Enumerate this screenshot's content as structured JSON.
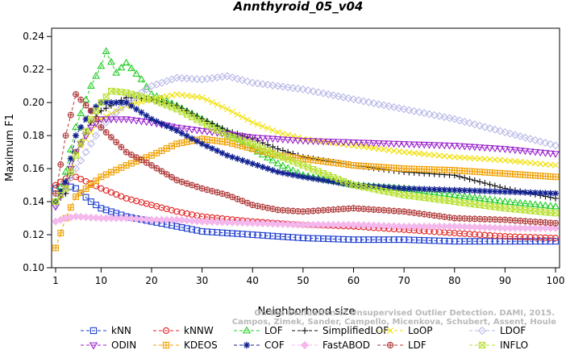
{
  "chart_data": {
    "type": "line",
    "title": "Annthyroid_05_v04",
    "xlabel": "Neighborhood size",
    "ylabel": "Maximum F1",
    "xlim": [
      1,
      100
    ],
    "ylim": [
      0.1,
      0.245
    ],
    "xticks": [
      "1",
      "10",
      "20",
      "30",
      "40",
      "50",
      "60",
      "70",
      "80",
      "90",
      "100"
    ],
    "yticks": [
      "0.10",
      "0.12",
      "0.14",
      "0.16",
      "0.18",
      "0.20",
      "0.22",
      "0.24"
    ],
    "grid": false,
    "legend_position": "bottom",
    "watermark": [
      "Campos, Zimek, Sander, Campello, Micenkova, Schubert, Assent, Houle",
      "On the Evaluation of Unsupervised Outlier Detection. DAMI, 2015."
    ],
    "series": [
      {
        "name": "kNN",
        "color": "#1f3fcf",
        "marker": "square",
        "dash": "dash",
        "points": [
          [
            1,
            0.148
          ],
          [
            3,
            0.15
          ],
          [
            5,
            0.148
          ],
          [
            8,
            0.14
          ],
          [
            10,
            0.136
          ],
          [
            15,
            0.131
          ],
          [
            20,
            0.128
          ],
          [
            25,
            0.125
          ],
          [
            30,
            0.122
          ],
          [
            40,
            0.12
          ],
          [
            50,
            0.118
          ],
          [
            60,
            0.117
          ],
          [
            70,
            0.117
          ],
          [
            80,
            0.116
          ],
          [
            90,
            0.116
          ],
          [
            100,
            0.116
          ]
        ]
      },
      {
        "name": "kNNW",
        "color": "#e02020",
        "marker": "circle",
        "dash": "dash",
        "points": [
          [
            1,
            0.15
          ],
          [
            3,
            0.154
          ],
          [
            5,
            0.155
          ],
          [
            8,
            0.151
          ],
          [
            10,
            0.148
          ],
          [
            15,
            0.142
          ],
          [
            20,
            0.138
          ],
          [
            25,
            0.134
          ],
          [
            30,
            0.131
          ],
          [
            40,
            0.128
          ],
          [
            50,
            0.126
          ],
          [
            60,
            0.125
          ],
          [
            70,
            0.123
          ],
          [
            80,
            0.121
          ],
          [
            90,
            0.119
          ],
          [
            100,
            0.118
          ]
        ]
      },
      {
        "name": "LOF",
        "color": "#22cc22",
        "marker": "triangle",
        "dash": "dash",
        "points": [
          [
            1,
            0.14
          ],
          [
            3,
            0.158
          ],
          [
            5,
            0.185
          ],
          [
            8,
            0.21
          ],
          [
            10,
            0.222
          ],
          [
            11,
            0.231
          ],
          [
            13,
            0.218
          ],
          [
            15,
            0.224
          ],
          [
            18,
            0.214
          ],
          [
            20,
            0.205
          ],
          [
            25,
            0.198
          ],
          [
            30,
            0.19
          ],
          [
            35,
            0.182
          ],
          [
            40,
            0.172
          ],
          [
            45,
            0.163
          ],
          [
            50,
            0.156
          ],
          [
            60,
            0.15
          ],
          [
            70,
            0.148
          ],
          [
            80,
            0.144
          ],
          [
            90,
            0.14
          ],
          [
            100,
            0.137
          ]
        ]
      },
      {
        "name": "SimplifiedLOF",
        "color": "#111111",
        "marker": "plus",
        "dash": "dash",
        "points": [
          [
            1,
            0.14
          ],
          [
            3,
            0.145
          ],
          [
            5,
            0.17
          ],
          [
            8,
            0.188
          ],
          [
            10,
            0.195
          ],
          [
            15,
            0.203
          ],
          [
            20,
            0.202
          ],
          [
            25,
            0.198
          ],
          [
            30,
            0.19
          ],
          [
            35,
            0.183
          ],
          [
            40,
            0.178
          ],
          [
            45,
            0.172
          ],
          [
            50,
            0.167
          ],
          [
            60,
            0.162
          ],
          [
            70,
            0.158
          ],
          [
            80,
            0.156
          ],
          [
            90,
            0.148
          ],
          [
            100,
            0.142
          ]
        ]
      },
      {
        "name": "LoOP",
        "color": "#f0e000",
        "marker": "x",
        "dash": "dash",
        "points": [
          [
            1,
            0.14
          ],
          [
            3,
            0.15
          ],
          [
            5,
            0.17
          ],
          [
            10,
            0.19
          ],
          [
            15,
            0.198
          ],
          [
            20,
            0.202
          ],
          [
            25,
            0.205
          ],
          [
            30,
            0.203
          ],
          [
            35,
            0.196
          ],
          [
            40,
            0.188
          ],
          [
            45,
            0.182
          ],
          [
            50,
            0.178
          ],
          [
            60,
            0.174
          ],
          [
            70,
            0.17
          ],
          [
            80,
            0.167
          ],
          [
            90,
            0.165
          ],
          [
            100,
            0.162
          ]
        ]
      },
      {
        "name": "LDOF",
        "color": "#b8b8e8",
        "marker": "diamond",
        "dash": "dash",
        "points": [
          [
            1,
            0.138
          ],
          [
            5,
            0.16
          ],
          [
            10,
            0.185
          ],
          [
            15,
            0.2
          ],
          [
            20,
            0.21
          ],
          [
            25,
            0.215
          ],
          [
            30,
            0.214
          ],
          [
            35,
            0.216
          ],
          [
            40,
            0.212
          ],
          [
            45,
            0.21
          ],
          [
            50,
            0.208
          ],
          [
            60,
            0.202
          ],
          [
            70,
            0.196
          ],
          [
            80,
            0.19
          ],
          [
            90,
            0.182
          ],
          [
            100,
            0.174
          ]
        ]
      },
      {
        "name": "ODIN",
        "color": "#9922cc",
        "marker": "triangle-down",
        "dash": "dash",
        "points": [
          [
            1,
            0.137
          ],
          [
            3,
            0.15
          ],
          [
            5,
            0.17
          ],
          [
            8,
            0.185
          ],
          [
            10,
            0.19
          ],
          [
            15,
            0.19
          ],
          [
            20,
            0.188
          ],
          [
            25,
            0.185
          ],
          [
            30,
            0.183
          ],
          [
            35,
            0.181
          ],
          [
            40,
            0.179
          ],
          [
            50,
            0.177
          ],
          [
            60,
            0.176
          ],
          [
            70,
            0.175
          ],
          [
            80,
            0.174
          ],
          [
            90,
            0.172
          ],
          [
            100,
            0.169
          ]
        ]
      },
      {
        "name": "KDEOS",
        "color": "#f0a000",
        "marker": "boxplus",
        "dash": "dash",
        "points": [
          [
            1,
            0.112
          ],
          [
            3,
            0.13
          ],
          [
            5,
            0.143
          ],
          [
            10,
            0.155
          ],
          [
            15,
            0.162
          ],
          [
            20,
            0.168
          ],
          [
            25,
            0.175
          ],
          [
            30,
            0.178
          ],
          [
            35,
            0.176
          ],
          [
            40,
            0.172
          ],
          [
            45,
            0.168
          ],
          [
            50,
            0.166
          ],
          [
            60,
            0.162
          ],
          [
            70,
            0.16
          ],
          [
            80,
            0.159
          ],
          [
            90,
            0.157
          ],
          [
            100,
            0.155
          ]
        ]
      },
      {
        "name": "COF",
        "color": "#102090",
        "marker": "asterisk",
        "dash": "dash",
        "points": [
          [
            1,
            0.14
          ],
          [
            3,
            0.152
          ],
          [
            5,
            0.18
          ],
          [
            8,
            0.195
          ],
          [
            10,
            0.2
          ],
          [
            15,
            0.2
          ],
          [
            20,
            0.19
          ],
          [
            25,
            0.183
          ],
          [
            30,
            0.175
          ],
          [
            35,
            0.168
          ],
          [
            40,
            0.163
          ],
          [
            45,
            0.158
          ],
          [
            50,
            0.155
          ],
          [
            60,
            0.15
          ],
          [
            70,
            0.148
          ],
          [
            80,
            0.147
          ],
          [
            90,
            0.146
          ],
          [
            100,
            0.145
          ]
        ]
      },
      {
        "name": "FastABOD",
        "color": "#f4b8ec",
        "marker": "diamond-filled",
        "dash": "dash",
        "points": [
          [
            1,
            0.128
          ],
          [
            3,
            0.13
          ],
          [
            5,
            0.131
          ],
          [
            10,
            0.13
          ],
          [
            15,
            0.13
          ],
          [
            20,
            0.129
          ],
          [
            25,
            0.129
          ],
          [
            30,
            0.128
          ],
          [
            40,
            0.127
          ],
          [
            50,
            0.126
          ],
          [
            60,
            0.126
          ],
          [
            70,
            0.125
          ],
          [
            80,
            0.125
          ],
          [
            90,
            0.124
          ],
          [
            100,
            0.124
          ]
        ]
      },
      {
        "name": "LDF",
        "color": "#b03a3a",
        "marker": "circleplus",
        "dash": "dash",
        "points": [
          [
            1,
            0.145
          ],
          [
            3,
            0.18
          ],
          [
            5,
            0.205
          ],
          [
            8,
            0.195
          ],
          [
            10,
            0.185
          ],
          [
            15,
            0.17
          ],
          [
            20,
            0.162
          ],
          [
            25,
            0.153
          ],
          [
            30,
            0.148
          ],
          [
            35,
            0.144
          ],
          [
            40,
            0.138
          ],
          [
            45,
            0.135
          ],
          [
            50,
            0.134
          ],
          [
            60,
            0.136
          ],
          [
            70,
            0.134
          ],
          [
            80,
            0.13
          ],
          [
            90,
            0.129
          ],
          [
            100,
            0.127
          ]
        ]
      },
      {
        "name": "INFLO",
        "color": "#b8e030",
        "marker": "boxx",
        "dash": "dash",
        "points": [
          [
            1,
            0.14
          ],
          [
            3,
            0.148
          ],
          [
            5,
            0.168
          ],
          [
            8,
            0.19
          ],
          [
            10,
            0.2
          ],
          [
            12,
            0.207
          ],
          [
            15,
            0.206
          ],
          [
            20,
            0.202
          ],
          [
            25,
            0.196
          ],
          [
            30,
            0.188
          ],
          [
            35,
            0.18
          ],
          [
            40,
            0.175
          ],
          [
            45,
            0.168
          ],
          [
            50,
            0.162
          ],
          [
            60,
            0.15
          ],
          [
            70,
            0.144
          ],
          [
            80,
            0.14
          ],
          [
            90,
            0.136
          ],
          [
            100,
            0.133
          ]
        ]
      }
    ]
  }
}
